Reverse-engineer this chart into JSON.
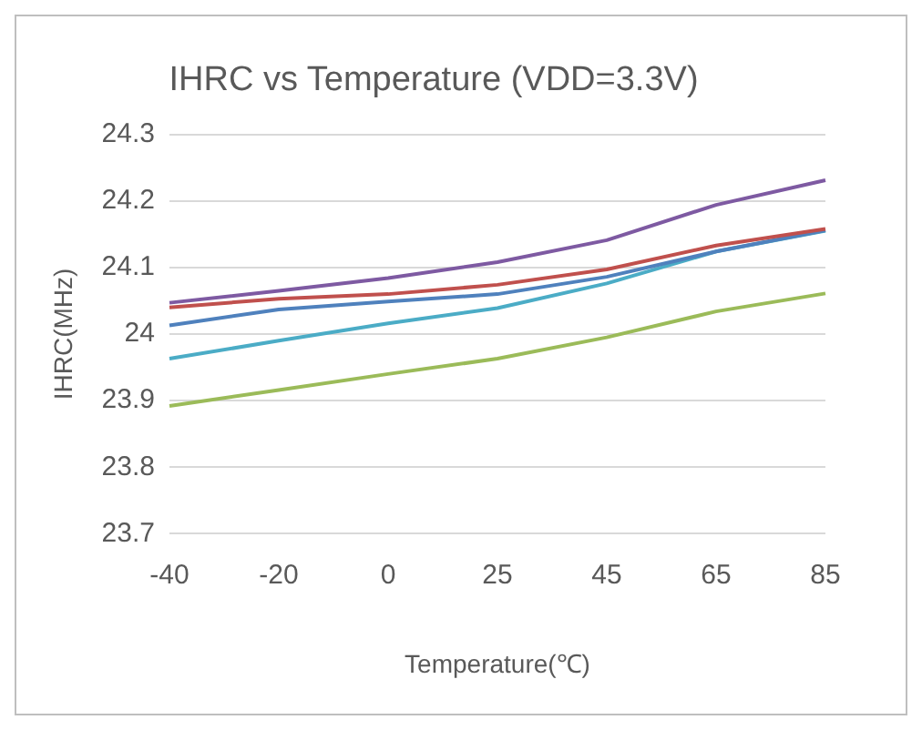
{
  "chart_data": {
    "type": "line",
    "title": "IHRC vs Temperature (VDD=3.3V)",
    "xlabel": "Temperature(℃)",
    "ylabel": "IHRC(MHz)",
    "categories": [
      "-40",
      "-20",
      "0",
      "25",
      "45",
      "65",
      "85"
    ],
    "ylim": [
      23.7,
      24.3
    ],
    "yticks": [
      23.7,
      23.8,
      23.9,
      24,
      24.1,
      24.2,
      24.3
    ],
    "grid": "y",
    "legend": false,
    "marker": "none",
    "series": [
      {
        "color": "#7e5aa2",
        "values": [
          24.047,
          24.065,
          24.084,
          24.108,
          24.141,
          24.194,
          24.231
        ]
      },
      {
        "color": "#c0504d",
        "values": [
          24.04,
          24.053,
          24.06,
          24.074,
          24.097,
          24.133,
          24.158
        ]
      },
      {
        "color": "#4f81bd",
        "values": [
          24.013,
          24.037,
          24.049,
          24.06,
          24.086,
          24.124,
          24.156
        ]
      },
      {
        "color": "#4bacc6",
        "values": [
          23.963,
          23.99,
          24.016,
          24.039,
          24.076,
          24.124,
          24.155
        ]
      },
      {
        "color": "#9bbb59",
        "values": [
          23.892,
          23.916,
          23.94,
          23.963,
          23.995,
          24.034,
          24.061
        ]
      }
    ]
  }
}
